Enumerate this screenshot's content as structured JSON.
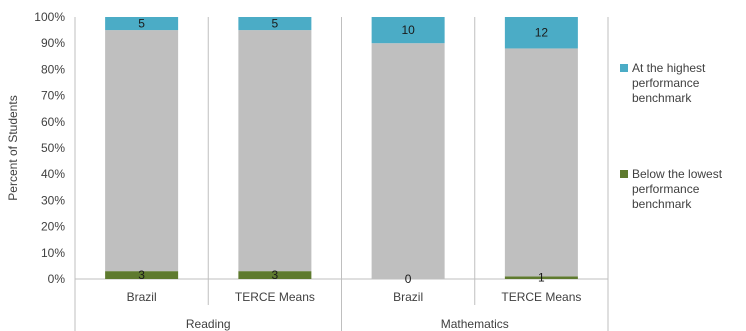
{
  "chart_data": {
    "type": "bar",
    "stacked": true,
    "stacked_percent": true,
    "title": "",
    "xlabel": "",
    "ylabel": "Percent of Students",
    "ylim": [
      0,
      100
    ],
    "y_ticks": [
      "0%",
      "10%",
      "20%",
      "30%",
      "40%",
      "50%",
      "60%",
      "70%",
      "80%",
      "90%",
      "100%"
    ],
    "grid": false,
    "legend_position": "right",
    "groups": [
      {
        "label": "Reading",
        "categories": [
          "Brazil",
          "TERCE Means"
        ]
      },
      {
        "label": "Mathematics",
        "categories": [
          "Brazil",
          "TERCE Means"
        ]
      }
    ],
    "categories": [
      "Brazil",
      "TERCE Means",
      "Brazil",
      "TERCE Means"
    ],
    "series": [
      {
        "name": "Below the lowest performance benchmark",
        "values": [
          3,
          3,
          0,
          1
        ],
        "color": "#5e7a2e"
      },
      {
        "name": "",
        "values": [
          92,
          92,
          90,
          87
        ],
        "color": "#bfbfbf"
      },
      {
        "name": "At the highest performance benchmark",
        "values": [
          5,
          5,
          10,
          12
        ],
        "color": "#4bacc6"
      }
    ],
    "data_labels": {
      "below": [
        "3",
        "3",
        "0",
        "1"
      ],
      "highest": [
        "5",
        "5",
        "10",
        "12"
      ]
    },
    "legend": [
      {
        "lines": [
          "At the highest",
          "performance",
          "benchmark"
        ],
        "color": "#4bacc6"
      },
      {
        "lines": [
          "Below the lowest",
          "performance",
          "benchmark"
        ],
        "color": "#5e7a2e"
      }
    ]
  }
}
